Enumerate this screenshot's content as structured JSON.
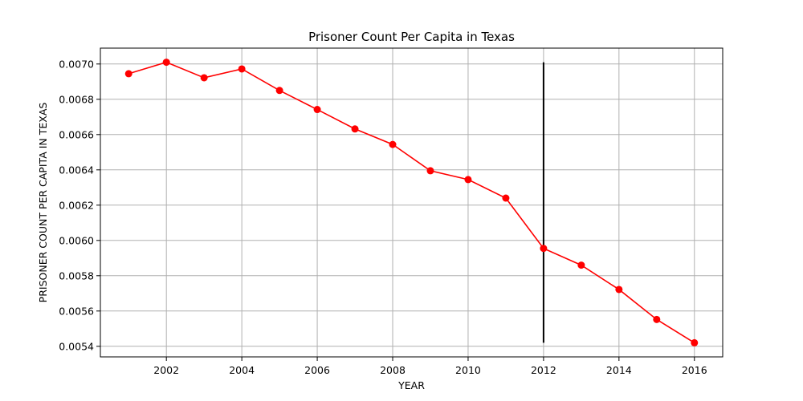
{
  "chart_data": {
    "type": "line",
    "title": "Prisoner Count Per Capita in Texas",
    "xlabel": "YEAR",
    "ylabel": "PRISONER COUNT PER CAPITA IN TEXAS",
    "xlim": [
      2000.25,
      2016.75
    ],
    "ylim": [
      0.00534,
      0.00709
    ],
    "x_ticks": [
      2002,
      2004,
      2006,
      2008,
      2010,
      2012,
      2014,
      2016
    ],
    "x_tick_labels": [
      "2002",
      "2004",
      "2006",
      "2008",
      "2010",
      "2012",
      "2014",
      "2016"
    ],
    "y_ticks": [
      0.0054,
      0.0056,
      0.0058,
      0.006,
      0.0062,
      0.0064,
      0.0066,
      0.0068,
      0.007
    ],
    "y_tick_labels": [
      "0.0054",
      "0.0056",
      "0.0058",
      "0.0060",
      "0.0062",
      "0.0064",
      "0.0066",
      "0.0068",
      "0.0070"
    ],
    "grid": true,
    "series": [
      {
        "color": "#ff0000",
        "marker": "circle",
        "x": [
          2001,
          2002,
          2003,
          2004,
          2005,
          2006,
          2007,
          2008,
          2009,
          2010,
          2011,
          2012,
          2013,
          2014,
          2015,
          2016
        ],
        "values": [
          0.006945,
          0.00701,
          0.006922,
          0.006972,
          0.00685,
          0.006742,
          0.006632,
          0.006544,
          0.006395,
          0.006345,
          0.00624,
          0.005955,
          0.00586,
          0.005722,
          0.005552,
          0.00542
        ]
      }
    ],
    "vertical_line": {
      "x": 2012,
      "y_from": 0.00542,
      "y_to": 0.00701,
      "color": "#000000"
    }
  }
}
